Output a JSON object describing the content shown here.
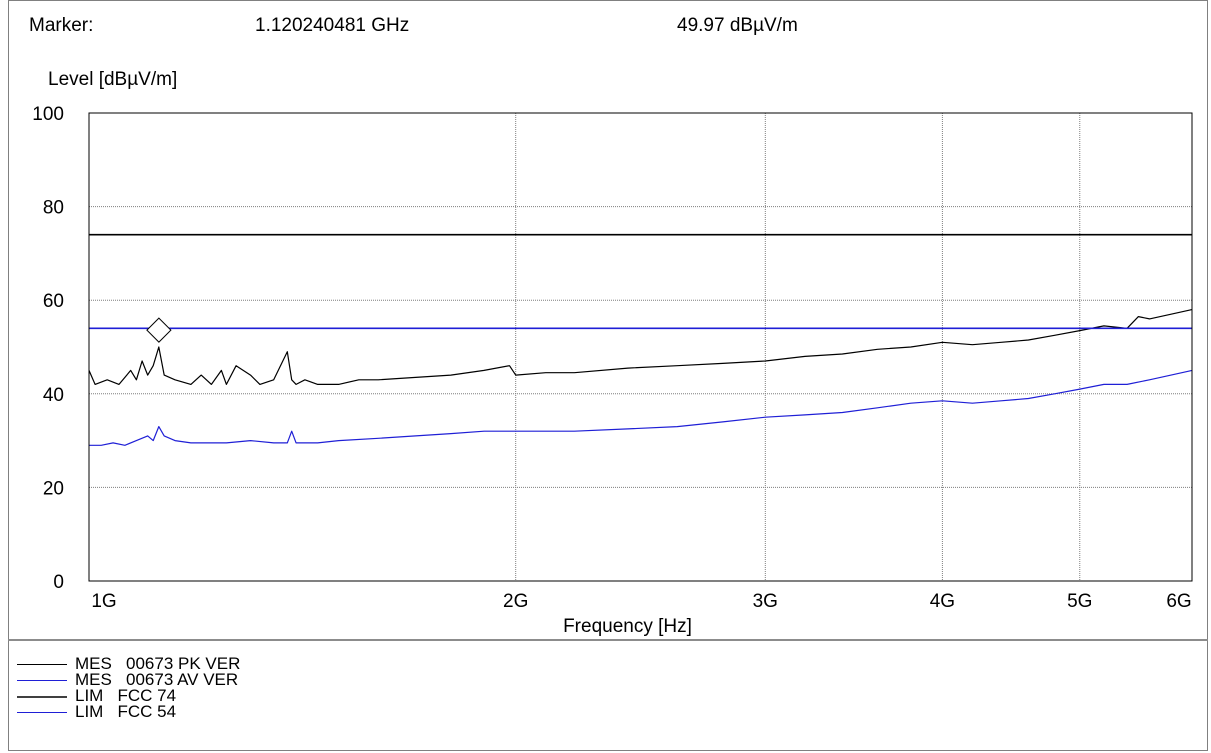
{
  "header": {
    "marker_label": "Marker:",
    "marker_freq": "1.120240481 GHz",
    "marker_level": "49.97 dBµV/m"
  },
  "chart_data": {
    "type": "line",
    "ylabel": "Level [dBµV/m]",
    "xlabel": "Frequency [Hz]",
    "x_scale": "log",
    "xlim_ghz": [
      1,
      6
    ],
    "ylim": [
      0,
      100
    ],
    "y_ticks": [
      0,
      20,
      40,
      60,
      80,
      100
    ],
    "y_tick_labels": [
      "0",
      "20",
      "40",
      "60",
      "80",
      "100"
    ],
    "x_ticks_ghz": [
      1,
      2,
      3,
      4,
      5,
      6
    ],
    "x_tick_labels": [
      "1G",
      "2G",
      "3G",
      "4G",
      "5G",
      "6G"
    ],
    "grid": true,
    "marker_point": {
      "x_ghz": 1.120240481,
      "y": 49.97
    },
    "series": [
      {
        "name": "MES 00673 PK VER",
        "color": "#000000",
        "x_ghz": [
          1.0,
          1.01,
          1.03,
          1.05,
          1.07,
          1.08,
          1.09,
          1.1,
          1.11,
          1.115,
          1.12,
          1.13,
          1.15,
          1.18,
          1.2,
          1.22,
          1.24,
          1.25,
          1.27,
          1.3,
          1.32,
          1.35,
          1.38,
          1.39,
          1.4,
          1.42,
          1.45,
          1.5,
          1.55,
          1.6,
          1.7,
          1.8,
          1.9,
          1.98,
          2.0,
          2.1,
          2.2,
          2.4,
          2.6,
          2.8,
          3.0,
          3.2,
          3.4,
          3.6,
          3.8,
          4.0,
          4.2,
          4.4,
          4.6,
          4.8,
          5.0,
          5.2,
          5.4,
          5.5,
          5.6,
          5.8,
          6.0
        ],
        "values": [
          45,
          42,
          43,
          42,
          45,
          43,
          47,
          44,
          46,
          48,
          50,
          44,
          43,
          42,
          44,
          42,
          45,
          42,
          46,
          44,
          42,
          43,
          49,
          43,
          42,
          43,
          42,
          42,
          43,
          43,
          43.5,
          44,
          45,
          46,
          44,
          44.5,
          44.5,
          45.5,
          46,
          46.5,
          47,
          48,
          48.5,
          49.5,
          50,
          51,
          50.5,
          51,
          51.5,
          52.5,
          53.5,
          54.5,
          54,
          56.5,
          56,
          57,
          58
        ]
      },
      {
        "name": "MES 00673 AV VER",
        "color": "#1f1fd6",
        "x_ghz": [
          1.0,
          1.02,
          1.04,
          1.06,
          1.08,
          1.1,
          1.11,
          1.12,
          1.13,
          1.15,
          1.18,
          1.2,
          1.25,
          1.3,
          1.35,
          1.38,
          1.39,
          1.4,
          1.45,
          1.5,
          1.6,
          1.7,
          1.8,
          1.9,
          2.0,
          2.2,
          2.4,
          2.6,
          2.8,
          3.0,
          3.2,
          3.4,
          3.6,
          3.8,
          4.0,
          4.2,
          4.4,
          4.6,
          4.8,
          5.0,
          5.2,
          5.4,
          5.6,
          5.8,
          6.0
        ],
        "values": [
          29,
          29,
          29.5,
          29,
          30,
          31,
          30,
          33,
          31,
          30,
          29.5,
          29.5,
          29.5,
          30,
          29.5,
          29.5,
          32,
          29.5,
          29.5,
          30,
          30.5,
          31,
          31.5,
          32,
          32,
          32,
          32.5,
          33,
          34,
          35,
          35.5,
          36,
          37,
          38,
          38.5,
          38,
          38.5,
          39,
          40,
          41,
          42,
          42,
          43,
          44,
          45
        ]
      },
      {
        "name": "LIM FCC 74",
        "color": "#000000",
        "x_ghz": [
          1,
          6
        ],
        "values": [
          74,
          74
        ]
      },
      {
        "name": "LIM FCC 54",
        "color": "#1f1fd6",
        "x_ghz": [
          1,
          6
        ],
        "values": [
          54,
          54
        ]
      }
    ]
  },
  "legend": {
    "items": [
      {
        "type": "MES",
        "label": "00673 PK VER",
        "color": "#000000"
      },
      {
        "type": "MES",
        "label": "00673 AV VER",
        "color": "#1f1fd6"
      },
      {
        "type": "LIM",
        "label": "FCC 74",
        "color": "#404040"
      },
      {
        "type": "LIM",
        "label": "FCC 54",
        "color": "#1f1fd6"
      }
    ]
  }
}
